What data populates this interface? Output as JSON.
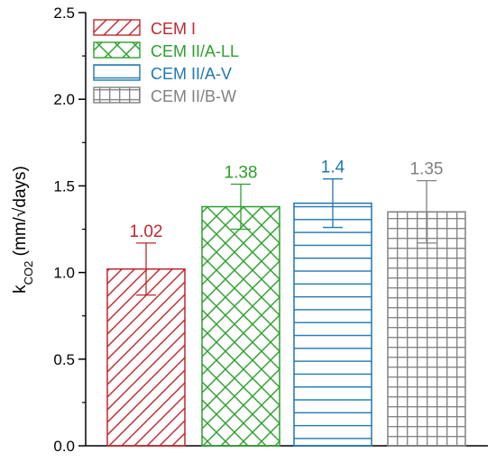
{
  "chart_data": {
    "type": "bar",
    "title": "",
    "ylabel": {
      "main": "k",
      "sub": "CO2",
      "unit": " (mm/√days)"
    },
    "ylim": [
      0,
      2.5
    ],
    "yticks": [
      "0.0",
      "0.5",
      "1.0",
      "1.5",
      "2.0",
      "2.5"
    ],
    "legend_position": "top-left",
    "series": [
      {
        "name": "CEM I",
        "value": 1.02,
        "error": 0.15,
        "label": "1.02",
        "color": "#c0272d",
        "pattern": "diagonal-hatch"
      },
      {
        "name": "CEM II/A-LL",
        "value": 1.38,
        "error": 0.13,
        "label": "1.38",
        "color": "#2ca02c",
        "pattern": "crosshatch"
      },
      {
        "name": "CEM II/A-V",
        "value": 1.4,
        "error": 0.14,
        "label": "1.4",
        "color": "#1f77b4",
        "pattern": "horizontal-lines"
      },
      {
        "name": "CEM II/B-W",
        "value": 1.35,
        "error": 0.18,
        "label": "1.35",
        "color": "#808080",
        "pattern": "grid"
      }
    ]
  }
}
